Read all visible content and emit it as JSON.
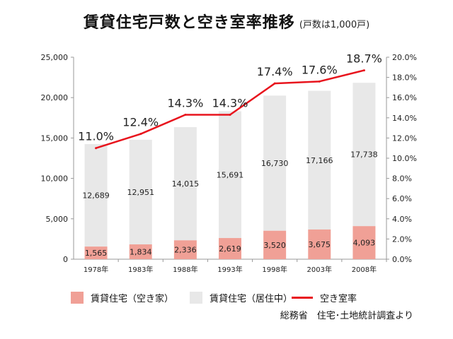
{
  "title": "賃貸住宅戸数と空き室率推移",
  "subtitle": "(戸数は1,000戸)",
  "chart_data": {
    "type": "bar",
    "stacked": true,
    "categories": [
      "1978年",
      "1983年",
      "1988年",
      "1993年",
      "1998年",
      "2003年",
      "2008年"
    ],
    "series": [
      {
        "name": "賃貸住宅（空き家）",
        "values": [
          1565,
          1834,
          2336,
          2619,
          3520,
          3675,
          4093
        ],
        "labels": [
          "1,565",
          "1,834",
          "2,336",
          "2,619",
          "3,520",
          "3,675",
          "4,093"
        ],
        "color": "#f0a096"
      },
      {
        "name": "賃貸住宅（居住中）",
        "values": [
          12689,
          12951,
          14015,
          15691,
          16730,
          17166,
          17738
        ],
        "labels": [
          "12,689",
          "12,951",
          "14,015",
          "15,691",
          "16,730",
          "17,166",
          "17,738"
        ],
        "color": "#e8e8e8"
      }
    ],
    "line_series": {
      "name": "空き室率",
      "type": "line",
      "axis": "right",
      "values": [
        11.0,
        12.4,
        14.3,
        14.3,
        17.4,
        17.6,
        18.7
      ],
      "labels": [
        "11.0%",
        "12.4%",
        "14.3%",
        "14.3%",
        "17.4%",
        "17.6%",
        "18.7%"
      ],
      "color": "#e8141d"
    },
    "y_left": {
      "min": 0,
      "max": 25000,
      "ticks": [
        0,
        5000,
        10000,
        15000,
        20000,
        25000
      ],
      "tick_labels": [
        "0",
        "5,000",
        "10,000",
        "15,000",
        "20,000",
        "25,000"
      ]
    },
    "y_right": {
      "min": 0,
      "max": 20,
      "ticks": [
        0,
        2,
        4,
        6,
        8,
        10,
        12,
        14,
        16,
        18,
        20
      ],
      "tick_labels": [
        "0.0%",
        "2.0%",
        "4.0%",
        "6.0%",
        "8.0%",
        "10.0%",
        "12.0%",
        "14.0%",
        "16.0%",
        "18.0%",
        "20.0%"
      ]
    },
    "grid": false,
    "legend_position": "bottom"
  },
  "legend": [
    {
      "label": "賃貸住宅（空き家）",
      "color": "#f0a096",
      "kind": "box"
    },
    {
      "label": "賃貸住宅（居住中）",
      "color": "#e8e8e8",
      "kind": "box"
    },
    {
      "label": "空き室率",
      "color": "#e8141d",
      "kind": "line"
    }
  ],
  "source": "総務省　住宅･土地統計調査より"
}
